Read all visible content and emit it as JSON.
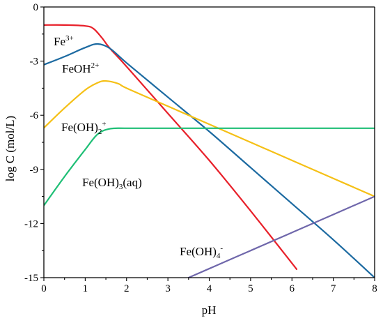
{
  "chart_data": {
    "type": "line",
    "title": "",
    "xlabel": "pH",
    "ylabel": "log C (mol/L)",
    "xlim": [
      0,
      8
    ],
    "ylim": [
      -15,
      0
    ],
    "x_ticks": [
      "0",
      "1",
      "2",
      "3",
      "4",
      "5",
      "6",
      "7",
      "8"
    ],
    "y_ticks": [
      "0",
      "-3",
      "-6",
      "-9",
      "-12",
      "-15"
    ],
    "grid": false,
    "legend": "inline labels",
    "series": [
      {
        "key": "fe3",
        "color": "#e8202a",
        "label": {
          "base": "Fe",
          "sup": "3+",
          "sub": "",
          "tail": ""
        },
        "points": [
          [
            0,
            -1.0
          ],
          [
            0.5,
            -1.0
          ],
          [
            1.0,
            -1.05
          ],
          [
            1.2,
            -1.2
          ],
          [
            1.4,
            -1.7
          ],
          [
            1.6,
            -2.3
          ],
          [
            2.0,
            -3.3
          ],
          [
            3.0,
            -5.9
          ],
          [
            4.0,
            -8.5
          ],
          [
            5.0,
            -11.3
          ],
          [
            6.0,
            -14.2
          ],
          [
            6.1,
            -14.5
          ]
        ]
      },
      {
        "key": "feoh2",
        "color": "#1c6aa1",
        "label": {
          "base": "FeOH",
          "sup": "2+",
          "sub": "",
          "tail": ""
        },
        "points": [
          [
            0,
            -3.2
          ],
          [
            0.5,
            -2.75
          ],
          [
            1.0,
            -2.25
          ],
          [
            1.3,
            -2.05
          ],
          [
            1.6,
            -2.3
          ],
          [
            2.0,
            -3.1
          ],
          [
            3.0,
            -5.0
          ],
          [
            4.0,
            -6.9
          ],
          [
            5.0,
            -8.9
          ],
          [
            6.0,
            -10.9
          ],
          [
            7.0,
            -12.9
          ],
          [
            8.0,
            -15.0
          ]
        ]
      },
      {
        "key": "feoh2p",
        "color": "#f5c016",
        "label": {
          "base": "Fe(OH)",
          "sup": "+",
          "sub": "2",
          "tail": ""
        },
        "points": [
          [
            0,
            -6.7
          ],
          [
            0.5,
            -5.6
          ],
          [
            1.0,
            -4.6
          ],
          [
            1.3,
            -4.2
          ],
          [
            1.5,
            -4.1
          ],
          [
            1.8,
            -4.25
          ],
          [
            2.0,
            -4.5
          ],
          [
            3.0,
            -5.5
          ],
          [
            4.0,
            -6.5
          ],
          [
            5.0,
            -7.5
          ],
          [
            6.0,
            -8.5
          ],
          [
            7.0,
            -9.5
          ],
          [
            8.0,
            -10.5
          ]
        ]
      },
      {
        "key": "feoh3",
        "color": "#1fbf76",
        "label": {
          "base": "Fe(OH)",
          "sup": "",
          "sub": "3",
          "tail": "(aq)"
        },
        "points": [
          [
            0,
            -11.0
          ],
          [
            0.5,
            -9.4
          ],
          [
            1.0,
            -7.9
          ],
          [
            1.3,
            -7.05
          ],
          [
            1.6,
            -6.75
          ],
          [
            2.0,
            -6.72
          ],
          [
            3.0,
            -6.72
          ],
          [
            5.0,
            -6.72
          ],
          [
            8.0,
            -6.72
          ]
        ]
      },
      {
        "key": "feoh4",
        "color": "#6f67ab",
        "label": {
          "base": "Fe(OH)",
          "sup": "-",
          "sub": "4",
          "tail": ""
        },
        "points": [
          [
            3.5,
            -15.0
          ],
          [
            4.0,
            -14.5
          ],
          [
            5.0,
            -13.5
          ],
          [
            6.0,
            -12.5
          ],
          [
            7.0,
            -11.5
          ],
          [
            8.0,
            -10.5
          ]
        ]
      }
    ]
  }
}
